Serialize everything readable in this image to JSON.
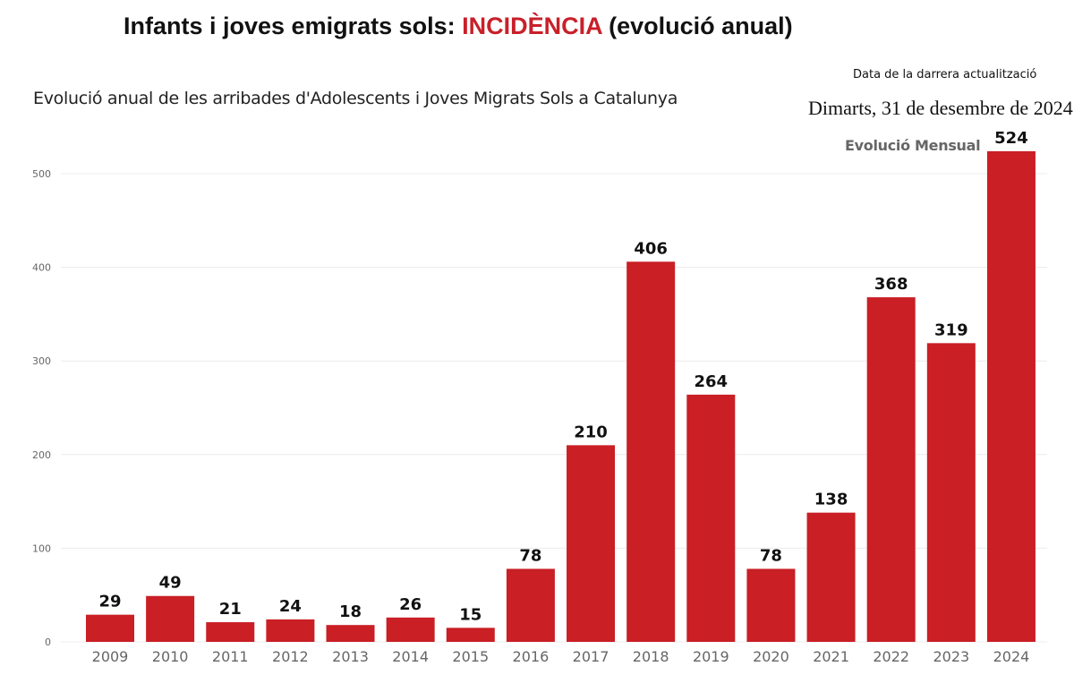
{
  "header": {
    "title_prefix": "Infants i joves emigrats sols: ",
    "title_highlight": "INCIDÈNCIA",
    "title_suffix": " (evolució anual)",
    "update_label": "Data de la darrera actualització",
    "update_date": "Dimarts, 31 de desembre de 2024",
    "monthly_button": "Evolució Mensual"
  },
  "colors": {
    "bar": "#c91f25",
    "highlight": "#c8202a"
  },
  "chart_data": {
    "type": "bar",
    "title": "Evolució anual de les arribades d'Adolescents i Joves Migrats Sols a Catalunya",
    "categories": [
      "2009",
      "2010",
      "2011",
      "2012",
      "2013",
      "2014",
      "2015",
      "2016",
      "2017",
      "2018",
      "2019",
      "2020",
      "2021",
      "2022",
      "2023",
      "2024"
    ],
    "values": [
      29,
      49,
      21,
      24,
      18,
      26,
      15,
      78,
      210,
      406,
      264,
      78,
      138,
      368,
      319,
      524
    ],
    "ylim": [
      0,
      530
    ],
    "yticks": [
      0,
      100,
      200,
      300,
      400,
      500
    ],
    "grid": true,
    "xlabel": "",
    "ylabel": ""
  }
}
